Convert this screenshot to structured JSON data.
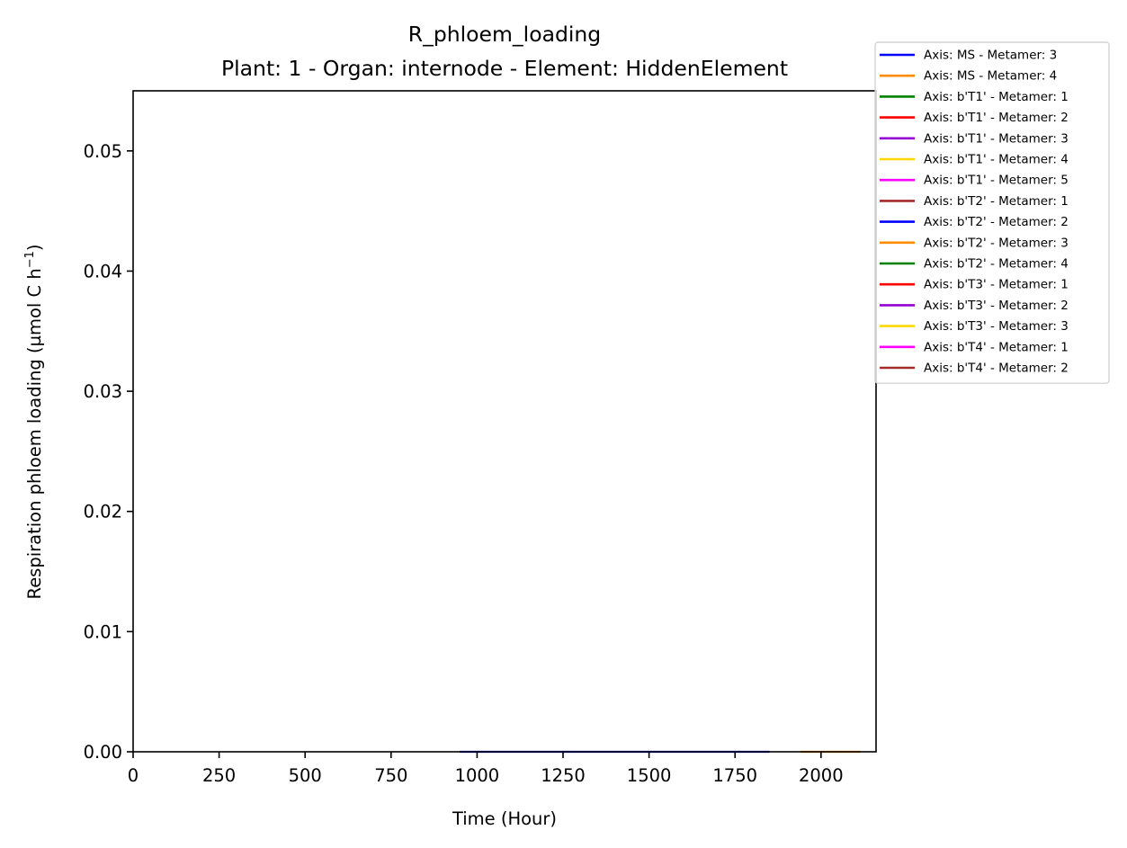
{
  "chart_data": {
    "type": "line",
    "title": "R_phloem_loading",
    "subtitle": "Plant: 1 - Organ: internode - Element: HiddenElement",
    "xlabel": "Time (Hour)",
    "ylabel": "Respiration phloem loading (µmol C h",
    "ylabel_unit_exponent": "−1",
    "ylabel_suffix": ")",
    "xlim": [
      0,
      2160
    ],
    "ylim": [
      0,
      0.055
    ],
    "xticks": [
      0,
      250,
      500,
      750,
      1000,
      1250,
      1500,
      1750,
      2000
    ],
    "xtick_labels": [
      "0",
      "250",
      "500",
      "750",
      "1000",
      "1250",
      "1500",
      "1750",
      "2000"
    ],
    "yticks": [
      0,
      0.01,
      0.02,
      0.03,
      0.04,
      0.05
    ],
    "ytick_labels": [
      "0.00",
      "0.01",
      "0.02",
      "0.03",
      "0.04",
      "0.05"
    ],
    "grid": false,
    "legend_position": "top-right outside",
    "series": [
      {
        "name": "Axis: MS - Metamer: 3",
        "color": "#0000ff",
        "x": [
          950,
          1850
        ],
        "y": [
          0,
          0
        ]
      },
      {
        "name": "Axis: MS - Metamer: 4",
        "color": "#ff8c00",
        "x": [
          1940,
          2115
        ],
        "y": [
          0,
          0
        ]
      },
      {
        "name": "Axis: b'T1' - Metamer: 1",
        "color": "#008000",
        "x": [],
        "y": []
      },
      {
        "name": "Axis: b'T1' - Metamer: 2",
        "color": "#ff0000",
        "x": [],
        "y": []
      },
      {
        "name": "Axis: b'T1' - Metamer: 3",
        "color": "#9400d3",
        "x": [],
        "y": []
      },
      {
        "name": "Axis: b'T1' - Metamer: 4",
        "color": "#ffd700",
        "x": [],
        "y": []
      },
      {
        "name": "Axis: b'T1' - Metamer: 5",
        "color": "#ff00ff",
        "x": [],
        "y": []
      },
      {
        "name": "Axis: b'T2' - Metamer: 1",
        "color": "#a52a2a",
        "x": [],
        "y": []
      },
      {
        "name": "Axis: b'T2' - Metamer: 2",
        "color": "#0000ff",
        "x": [],
        "y": []
      },
      {
        "name": "Axis: b'T2' - Metamer: 3",
        "color": "#ff8c00",
        "x": [],
        "y": []
      },
      {
        "name": "Axis: b'T2' - Metamer: 4",
        "color": "#008000",
        "x": [],
        "y": []
      },
      {
        "name": "Axis: b'T3' - Metamer: 1",
        "color": "#ff0000",
        "x": [],
        "y": []
      },
      {
        "name": "Axis: b'T3' - Metamer: 2",
        "color": "#9400d3",
        "x": [],
        "y": []
      },
      {
        "name": "Axis: b'T3' - Metamer: 3",
        "color": "#ffd700",
        "x": [],
        "y": []
      },
      {
        "name": "Axis: b'T4' - Metamer: 1",
        "color": "#ff00ff",
        "x": [],
        "y": []
      },
      {
        "name": "Axis: b'T4' - Metamer: 2",
        "color": "#a52a2a",
        "x": [],
        "y": []
      }
    ]
  }
}
